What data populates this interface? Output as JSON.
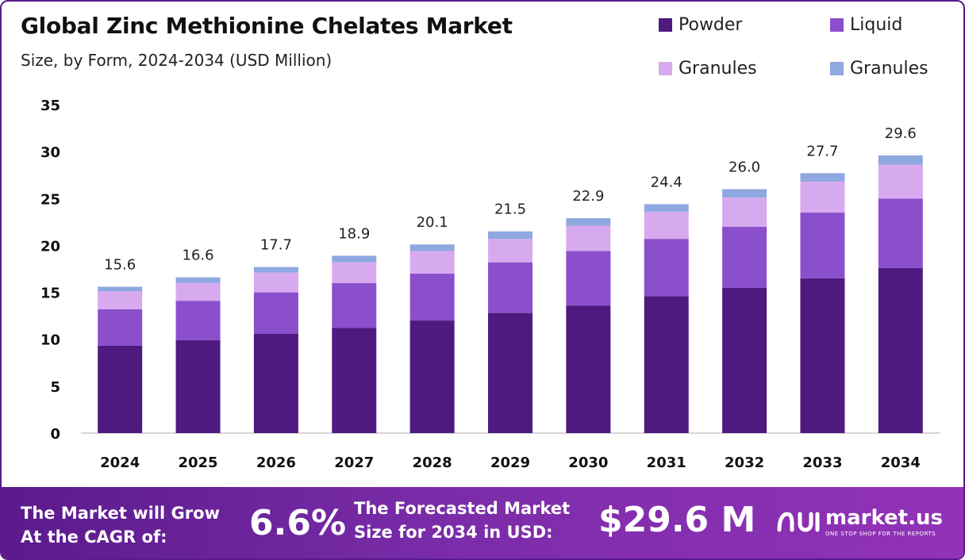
{
  "header": {
    "title": "Global Zinc Methionine Chelates Market",
    "subtitle": "Size, by Form, 2024-2034 (USD Million)"
  },
  "chart_data": {
    "type": "bar",
    "stacked": true,
    "categories": [
      "2024",
      "2025",
      "2026",
      "2027",
      "2028",
      "2029",
      "2030",
      "2031",
      "2032",
      "2033",
      "2034"
    ],
    "series": [
      {
        "name": "Powder",
        "color": "#4e1a80",
        "values": [
          9.3,
          9.9,
          10.6,
          11.2,
          12.0,
          12.8,
          13.6,
          14.6,
          15.5,
          16.5,
          17.6
        ]
      },
      {
        "name": "Liquid",
        "color": "#8c4fcc",
        "values": [
          3.9,
          4.2,
          4.4,
          4.8,
          5.0,
          5.4,
          5.8,
          6.1,
          6.5,
          7.0,
          7.4
        ]
      },
      {
        "name": "Granules",
        "color": "#d7aaef",
        "values": [
          1.9,
          1.9,
          2.1,
          2.2,
          2.4,
          2.5,
          2.7,
          2.9,
          3.1,
          3.3,
          3.6
        ]
      },
      {
        "name": "Granules",
        "color": "#8fa8e0",
        "values": [
          0.5,
          0.6,
          0.6,
          0.7,
          0.7,
          0.8,
          0.8,
          0.8,
          0.9,
          0.9,
          1.0
        ]
      }
    ],
    "totals": [
      "15.6",
      "16.6",
      "17.7",
      "18.9",
      "20.1",
      "21.5",
      "22.9",
      "24.4",
      "26.0",
      "27.7",
      "29.6"
    ],
    "y_ticks": [
      "0",
      "5",
      "10",
      "15",
      "20",
      "25",
      "30",
      "35"
    ],
    "ylim": [
      0,
      35
    ],
    "grid": false,
    "legend_position": "top-right"
  },
  "footer": {
    "cagr_label_line1": "The Market will Grow",
    "cagr_label_line2": "At the CAGR of:",
    "cagr_value": "6.6%",
    "forecast_label_line1": "The Forecasted Market",
    "forecast_label_line2": "Size for 2034 in USD:",
    "forecast_value": "$29.6 M",
    "brand_name": "market.us",
    "brand_tagline": "ONE STOP SHOP FOR THE REPORTS"
  }
}
